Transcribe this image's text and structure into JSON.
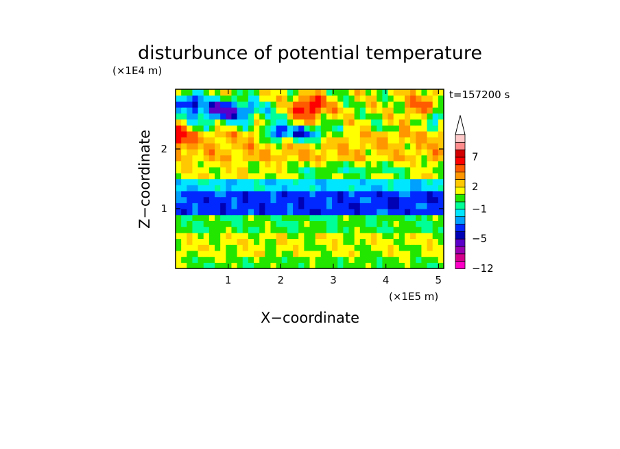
{
  "chart_data": {
    "type": "heatmap",
    "title": "disturbunce of potential temperature",
    "time_label": "t=157200 s",
    "xlabel": "X−coordinate",
    "ylabel": "Z−coordinate",
    "x_unit": "(×1E5 m)",
    "y_unit": "(×1E4 m)",
    "xlim": [
      0,
      5.1
    ],
    "ylim": [
      0,
      3.0
    ],
    "x_ticks": [
      1,
      2,
      3,
      4,
      5
    ],
    "x_tick_labels": [
      "1",
      "2",
      "3",
      "4",
      "5"
    ],
    "y_ticks": [
      1,
      2
    ],
    "y_tick_labels": [
      "1",
      "2"
    ],
    "colorbar": {
      "min": -12,
      "levels": [
        -12,
        -11,
        -9,
        -7,
        -5,
        -4,
        -3,
        -2,
        -1,
        0,
        1,
        2,
        3,
        4,
        5,
        7,
        9,
        11
      ],
      "colors": [
        "#ff00c8",
        "#d4008c",
        "#9a00b0",
        "#5a00c8",
        "#0000b4",
        "#0028ff",
        "#00a0ff",
        "#00e6ff",
        "#00ff96",
        "#22e600",
        "#ffff00",
        "#ffc800",
        "#ff9600",
        "#ff5a00",
        "#ff0000",
        "#d20000",
        "#ff8c8c",
        "#ffc8c8"
      ],
      "tick_values": [
        -12,
        -5,
        -1,
        2,
        7
      ],
      "tick_labels": [
        "−12",
        "−5",
        "−1",
        "2",
        "7"
      ],
      "extend": "max"
    },
    "grid_nx": 48,
    "grid_nz": 30,
    "bands": [
      {
        "z0": 0.0,
        "z1": 0.25,
        "base": 0.5,
        "amp": 0.9
      },
      {
        "z0": 0.25,
        "z1": 0.6,
        "base": 1.3,
        "amp": 1.2
      },
      {
        "z0": 0.6,
        "z1": 0.9,
        "base": 0.2,
        "amp": 1.0
      },
      {
        "z0": 0.9,
        "z1": 1.3,
        "base": -3.5,
        "amp": 0.8
      },
      {
        "z0": 1.3,
        "z1": 1.55,
        "base": -1.5,
        "amp": 0.9
      },
      {
        "z0": 1.55,
        "z1": 1.85,
        "base": 1.6,
        "amp": 1.2
      },
      {
        "z0": 1.85,
        "z1": 2.3,
        "base": 2.5,
        "amp": 1.6
      },
      {
        "z0": 2.3,
        "z1": 3.0,
        "base": 1.2,
        "amp": 2.2
      }
    ],
    "features": [
      {
        "x": 0.9,
        "z": 2.65,
        "rx": 0.7,
        "rz": 0.18,
        "amp": -6.5
      },
      {
        "x": 0.25,
        "z": 2.8,
        "rx": 0.2,
        "rz": 0.12,
        "amp": -5.5
      },
      {
        "x": 2.55,
        "z": 2.7,
        "rx": 0.35,
        "rz": 0.2,
        "amp": 5.5
      },
      {
        "x": 2.4,
        "z": 2.25,
        "rx": 0.5,
        "rz": 0.12,
        "amp": -6.0
      },
      {
        "x": 1.9,
        "z": 2.3,
        "rx": 0.15,
        "rz": 0.15,
        "amp": -5.0
      },
      {
        "x": 4.95,
        "z": 2.55,
        "rx": 0.2,
        "rz": 0.15,
        "amp": -5.0
      },
      {
        "x": 4.75,
        "z": 2.7,
        "rx": 0.45,
        "rz": 0.25,
        "amp": 3.0
      },
      {
        "x": 0.1,
        "z": 2.2,
        "rx": 0.2,
        "rz": 0.2,
        "amp": 3.5
      },
      {
        "x": 3.5,
        "z": 1.65,
        "rx": 1.0,
        "rz": 0.12,
        "amp": -2.0
      },
      {
        "x": 2.5,
        "z": 1.6,
        "rx": 0.4,
        "rz": 0.1,
        "amp": -1.5
      }
    ]
  }
}
